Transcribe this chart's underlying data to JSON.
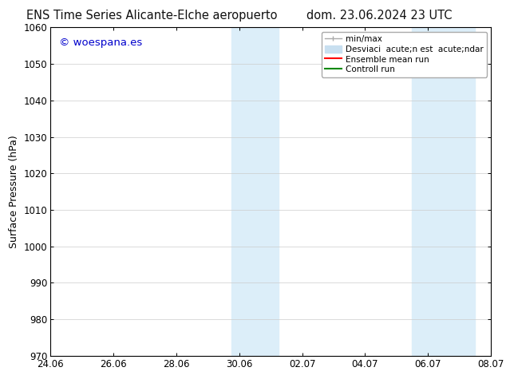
{
  "title_left": "ENS Time Series Alicante-Elche aeropuerto",
  "title_right": "dom. 23.06.2024 23 UTC",
  "ylabel": "Surface Pressure (hPa)",
  "ylim": [
    970,
    1060
  ],
  "yticks": [
    970,
    980,
    990,
    1000,
    1010,
    1020,
    1030,
    1040,
    1050,
    1060
  ],
  "xtick_labels": [
    "24.06",
    "26.06",
    "28.06",
    "30.06",
    "02.07",
    "04.07",
    "06.07",
    "08.07"
  ],
  "xtick_positions": [
    0,
    2,
    4,
    6,
    8,
    10,
    12,
    14
  ],
  "shaded_bands": [
    {
      "x_start": 5.75,
      "x_end": 7.25,
      "color": "#dceef9"
    },
    {
      "x_start": 11.5,
      "x_end": 13.5,
      "color": "#dceef9"
    }
  ],
  "copyright_text": "© woespana.es",
  "copyright_color": "#0000cc",
  "legend_label1": "min/max",
  "legend_label2": "Desviaci  acute;n est  acute;ndar",
  "legend_label3": "Ensemble mean run",
  "legend_label4": "Controll run",
  "legend_color1": "#aaaaaa",
  "legend_color2": "#c8dff0",
  "legend_color3": "#ff0000",
  "legend_color4": "#008800",
  "bg_color": "#ffffff",
  "plot_bg_color": "#ffffff",
  "grid_color": "#cccccc",
  "title_fontsize": 10.5,
  "axis_label_fontsize": 9,
  "tick_fontsize": 8.5,
  "legend_fontsize": 7.5
}
